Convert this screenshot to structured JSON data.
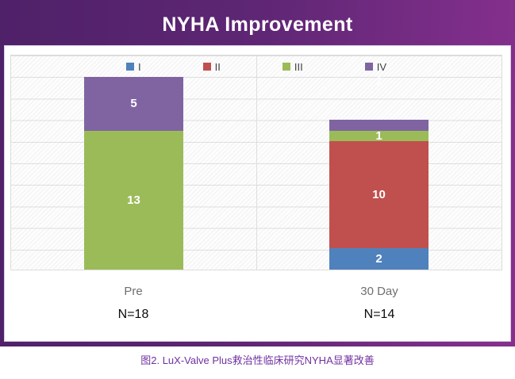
{
  "caption": "图2. LuX-Valve Plus救治性临床研究NYHA显著改善",
  "theme": {
    "header_gradient_left": "#4F2169",
    "header_gradient_right": "#86308E",
    "caption_color": "#7030A0",
    "gridline_color": "#e0e0e0",
    "category_label_color": "#6f6f6f"
  },
  "chart_data": {
    "type": "bar",
    "subtype": "stacked",
    "title": "NYHA Improvement",
    "categories": [
      "Pre",
      "30 Day"
    ],
    "n_labels": [
      "N=18",
      "N=14"
    ],
    "series": [
      {
        "name": "I",
        "color": "#4F81BD",
        "values": [
          0,
          2
        ]
      },
      {
        "name": "II",
        "color": "#C0504D",
        "values": [
          0,
          10
        ]
      },
      {
        "name": "III",
        "color": "#9BBB59",
        "values": [
          13,
          1
        ]
      },
      {
        "name": "IV",
        "color": "#8064A2",
        "values": [
          5,
          1
        ]
      }
    ],
    "totals": [
      18,
      14
    ],
    "ylim": [
      0,
      20
    ],
    "gridline_step": 2,
    "grid": true,
    "legend_position": "top-inside",
    "outside_label": {
      "category_index": 1,
      "series": "IV",
      "text": "1"
    }
  }
}
